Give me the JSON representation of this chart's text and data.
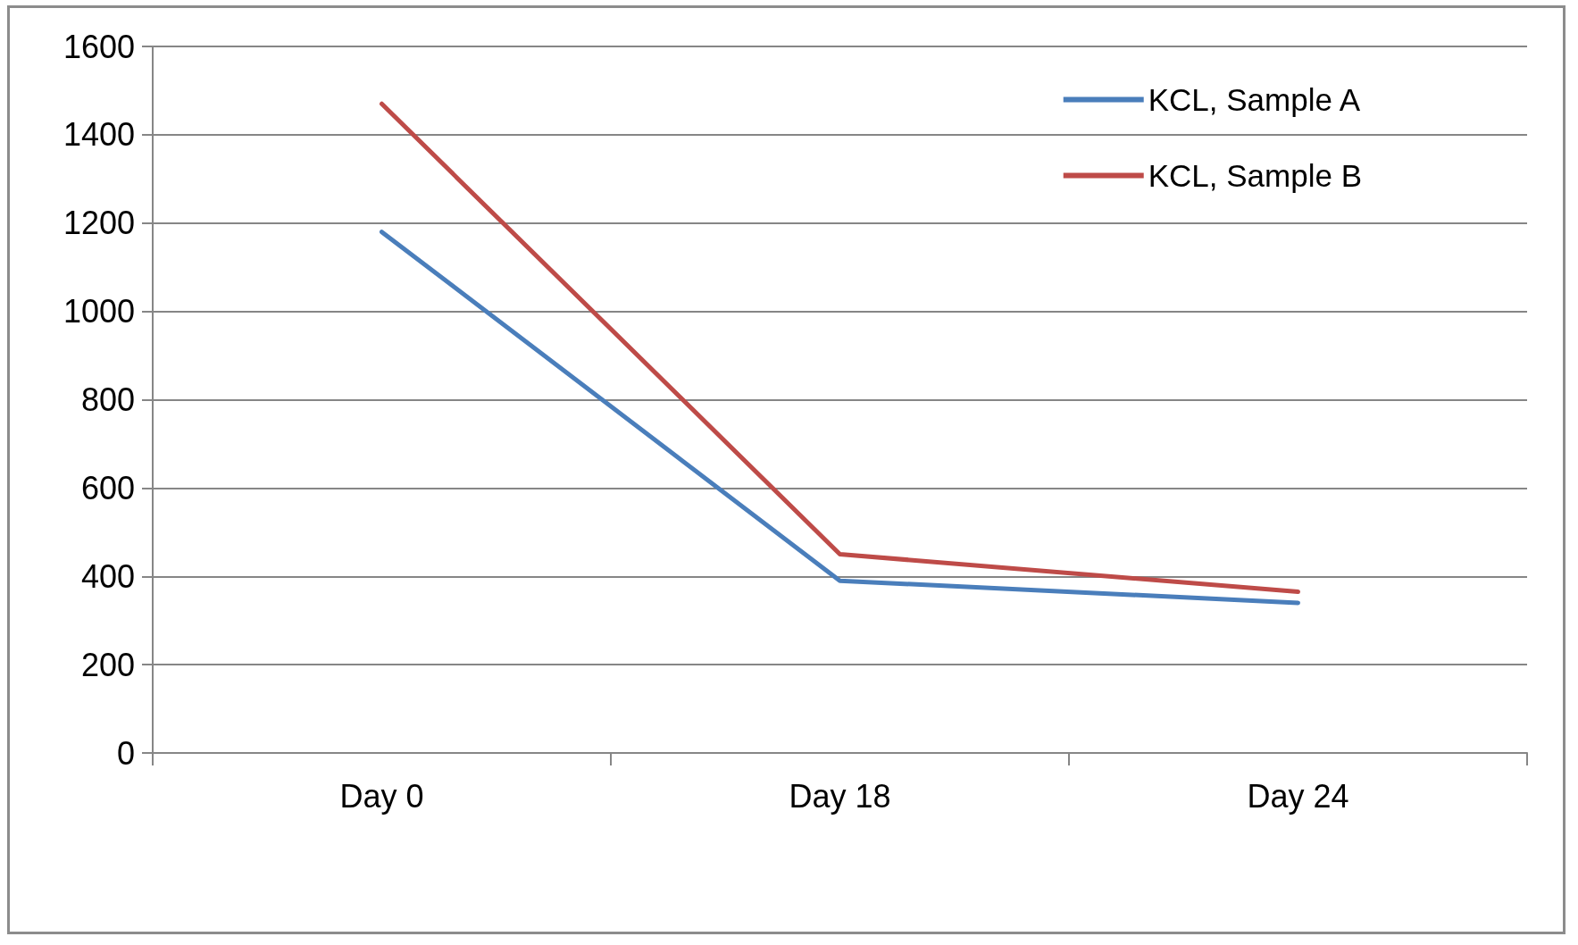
{
  "chart_data": {
    "type": "line",
    "categories": [
      "Day 0",
      "Day 18",
      "Day 24"
    ],
    "series": [
      {
        "name": "KCL, Sample A",
        "color": "#4a7ebb",
        "values": [
          1180,
          390,
          340
        ]
      },
      {
        "name": "KCL, Sample B",
        "color": "#be4b48",
        "values": [
          1470,
          450,
          365
        ]
      }
    ],
    "ylim": [
      0,
      1600
    ],
    "yticks": [
      0,
      200,
      400,
      600,
      800,
      1000,
      1200,
      1400,
      1600
    ],
    "grid": "y",
    "legend": "top right",
    "marker": "none",
    "line_style": "solid"
  }
}
